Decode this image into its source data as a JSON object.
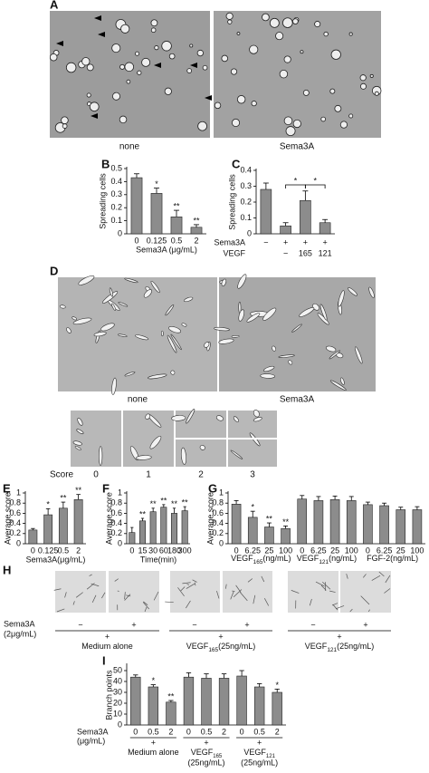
{
  "figure_a": {
    "label": "A",
    "captions": [
      "none",
      "Sema3A"
    ]
  },
  "figure_d": {
    "label": "D",
    "captions": [
      "none",
      "Sema3A"
    ],
    "score_label": "Score",
    "scores": [
      "0",
      "1",
      "2",
      "3"
    ]
  },
  "figure_h": {
    "label": "H",
    "sema3a_label": [
      "Sema3A",
      "(2μg/mL)"
    ],
    "signs": [
      "−",
      "+"
    ],
    "groups": [
      {
        "name": "Medium alone"
      },
      {
        "name": "VEGF",
        "sub": "165",
        "unit": "(25ng/mL)"
      },
      {
        "name": "VEGF",
        "sub": "121",
        "unit": "(25ng/mL)"
      }
    ]
  },
  "chart_data": [
    {
      "type": "bar",
      "label": "B",
      "ylabel": "Spreading cells",
      "xlabel": "Sema3A (μg/mL)",
      "categories": [
        "0",
        "0.125",
        "0.5",
        "2"
      ],
      "values": [
        0.43,
        0.31,
        0.13,
        0.05
      ],
      "errors": [
        0.03,
        0.04,
        0.05,
        0.02
      ],
      "annotations": [
        null,
        "*",
        "**",
        "**"
      ],
      "color": "#8c8c8c",
      "ylim": [
        0,
        0.5
      ],
      "yticks": [
        0,
        0.1,
        0.2,
        0.3,
        0.4,
        0.5
      ]
    },
    {
      "type": "bar",
      "label": "C",
      "ylabel": "Spreading cells",
      "values": [
        0.28,
        0.05,
        0.21,
        0.07
      ],
      "errors": [
        0.04,
        0.02,
        0.06,
        0.02
      ],
      "rows": [
        {
          "name": "Sema3A",
          "values": [
            "−",
            "+",
            "+",
            "+"
          ]
        },
        {
          "name": "VEGF",
          "values": [
            null,
            "−",
            "165",
            "121"
          ]
        }
      ],
      "significance": [
        {
          "pair": [
            1,
            2
          ],
          "label": "*"
        },
        {
          "pair": [
            2,
            3
          ],
          "label": "*"
        }
      ],
      "color": "#8c8c8c",
      "ylim": [
        0,
        0.4
      ],
      "yticks": [
        0,
        0.1,
        0.2,
        0.3,
        0.4
      ]
    },
    {
      "type": "bar",
      "label": "E",
      "ylabel": "Average score",
      "xlabel": "Sema3A(μg/mL)",
      "categories": [
        "0",
        "0.125",
        "0.5",
        "2"
      ],
      "values": [
        0.27,
        0.57,
        0.7,
        0.87
      ],
      "errors": [
        0.03,
        0.12,
        0.12,
        0.1
      ],
      "annotations": [
        null,
        "*",
        "**",
        "**"
      ],
      "color": "#8c8c8c",
      "ylim": [
        0,
        1
      ],
      "yticks": [
        0,
        0.2,
        0.4,
        0.6,
        0.8,
        1
      ]
    },
    {
      "type": "bar",
      "label": "F",
      "ylabel": "Average score",
      "xlabel": "Time(min)",
      "categories": [
        "0",
        "15",
        "30",
        "60",
        "180",
        "300"
      ],
      "values": [
        0.22,
        0.45,
        0.63,
        0.72,
        0.6,
        0.65
      ],
      "errors": [
        0.1,
        0.05,
        0.07,
        0.05,
        0.1,
        0.08
      ],
      "annotations": [
        null,
        "**",
        "**",
        "**",
        "**",
        "**"
      ],
      "color": "#8c8c8c",
      "ylim": [
        0,
        1
      ],
      "yticks": [
        0,
        0.2,
        0.4,
        0.6,
        0.8,
        1
      ]
    },
    {
      "type": "bar",
      "label": "G",
      "ylabel": "Average score",
      "color": "#8c8c8c",
      "ylim": [
        0,
        1
      ],
      "yticks": [
        0,
        0.2,
        0.4,
        0.6,
        0.8,
        1
      ],
      "groups": [
        {
          "name": "VEGF",
          "sub": "165",
          "unit": "(ng/mL)",
          "categories": [
            "0",
            "6.25",
            "25",
            "100"
          ],
          "values": [
            0.78,
            0.52,
            0.33,
            0.3
          ],
          "errors": [
            0.07,
            0.12,
            0.08,
            0.05
          ],
          "annotations": [
            null,
            "*",
            "**",
            "**"
          ]
        },
        {
          "name": "VEGF",
          "sub": "121",
          "unit": "(ng/mL)",
          "categories": [
            "0",
            "6.25",
            "25",
            "100"
          ],
          "values": [
            0.88,
            0.85,
            0.87,
            0.85
          ],
          "errors": [
            0.07,
            0.08,
            0.07,
            0.08
          ],
          "annotations": [
            null,
            null,
            null,
            null
          ]
        },
        {
          "name": "FGF-2",
          "unit": "(ng/mL)",
          "categories": [
            "0",
            "6.25",
            "25",
            "100"
          ],
          "values": [
            0.77,
            0.75,
            0.67,
            0.67
          ],
          "errors": [
            0.05,
            0.05,
            0.05,
            0.06
          ],
          "annotations": [
            null,
            null,
            null,
            null
          ]
        }
      ]
    },
    {
      "type": "bar",
      "label": "I",
      "ylabel": "Branch points",
      "sema3a_label": [
        "Sema3A",
        "(μg/mL)"
      ],
      "sign": "+",
      "color": "#8c8c8c",
      "ylim": [
        0,
        55
      ],
      "yticks": [
        0,
        10,
        20,
        30,
        40,
        50
      ],
      "groups": [
        {
          "name": "Medium alone",
          "categories": [
            "0",
            "0.5",
            "2"
          ],
          "values": [
            44,
            35,
            21
          ],
          "errors": [
            2,
            2,
            1.5
          ],
          "annotations": [
            null,
            "*",
            "**"
          ]
        },
        {
          "name": "VEGF",
          "sub": "165",
          "unit": "(25ng/mL)",
          "categories": [
            "0",
            "0.5",
            "2"
          ],
          "values": [
            44,
            43,
            43
          ],
          "errors": [
            4,
            4,
            4
          ],
          "annotations": [
            null,
            null,
            null
          ]
        },
        {
          "name": "VEGF",
          "sub": "121",
          "unit": "(25ng/mL)",
          "categories": [
            "0",
            "0.5",
            "2"
          ],
          "values": [
            45,
            35,
            30
          ],
          "errors": [
            5,
            3,
            3
          ],
          "annotations": [
            null,
            null,
            "*"
          ]
        }
      ]
    }
  ]
}
